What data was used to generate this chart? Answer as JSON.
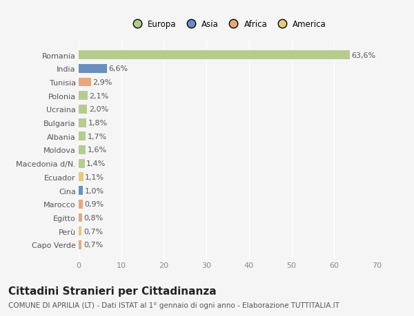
{
  "categories": [
    "Capo Verde",
    "Perù",
    "Egitto",
    "Marocco",
    "Cina",
    "Ecuador",
    "Macedonia d/N.",
    "Moldova",
    "Albania",
    "Bulgaria",
    "Ucraina",
    "Polonia",
    "Tunisia",
    "India",
    "Romania"
  ],
  "values": [
    0.7,
    0.7,
    0.8,
    0.9,
    1.0,
    1.1,
    1.4,
    1.6,
    1.7,
    1.8,
    2.0,
    2.1,
    2.9,
    6.6,
    63.6
  ],
  "labels": [
    "0,7%",
    "0,7%",
    "0,8%",
    "0,9%",
    "1,0%",
    "1,1%",
    "1,4%",
    "1,6%",
    "1,7%",
    "1,8%",
    "2,0%",
    "2,1%",
    "2,9%",
    "6,6%",
    "63,6%"
  ],
  "colors": [
    "#e8a87c",
    "#e8c97c",
    "#e8a87c",
    "#e8a87c",
    "#6a8fbe",
    "#e8c97c",
    "#b5cc8e",
    "#b5cc8e",
    "#b5cc8e",
    "#b5cc8e",
    "#b5cc8e",
    "#b5cc8e",
    "#e8a87c",
    "#6a8fbe",
    "#b5cc8e"
  ],
  "legend_labels": [
    "Europa",
    "Asia",
    "Africa",
    "America"
  ],
  "legend_colors": [
    "#b5cc8e",
    "#6a8fbe",
    "#e8a87c",
    "#e8c97c"
  ],
  "title": "Cittadini Stranieri per Cittadinanza",
  "subtitle": "COMUNE DI APRILIA (LT) - Dati ISTAT al 1° gennaio di ogni anno - Elaborazione TUTTITALIA.IT",
  "xlim": [
    0,
    70
  ],
  "xticks": [
    0,
    10,
    20,
    30,
    40,
    50,
    60,
    70
  ],
  "background_color": "#f5f5f5",
  "bar_height": 0.65,
  "grid_color": "#ffffff",
  "label_fontsize": 8,
  "tick_fontsize": 8,
  "title_fontsize": 11,
  "subtitle_fontsize": 7.5
}
